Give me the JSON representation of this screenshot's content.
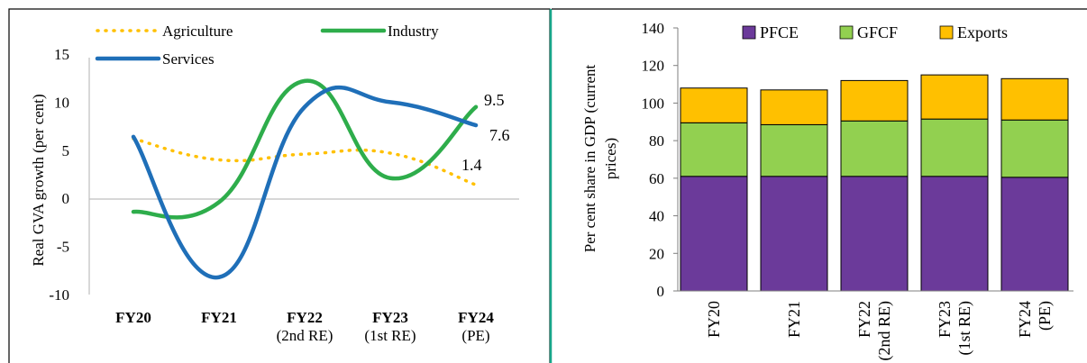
{
  "chart_data": [
    {
      "type": "line",
      "title": "",
      "ylabel": "Real GVA growth (per cent)",
      "xlabel": "",
      "categories": [
        "FY20",
        "FY21",
        "FY22|(2nd RE)",
        "FY23|(1st RE)",
        "FY24|(PE)"
      ],
      "ylim": [
        -10,
        15
      ],
      "yticks": [
        15,
        10,
        5,
        0,
        -5,
        -10
      ],
      "grid": false,
      "smooth": true,
      "legend_position": "top",
      "series": [
        {
          "name": "Agriculture",
          "values": [
            6.2,
            4.0,
            4.6,
            4.7,
            1.4
          ],
          "color": "#FFC000",
          "dash": "dotted",
          "end_label": "1.4"
        },
        {
          "name": "Industry",
          "values": [
            -1.4,
            -0.4,
            12.2,
            2.1,
            9.5
          ],
          "color": "#2EAD4B",
          "dash": "solid",
          "end_label": "9.5"
        },
        {
          "name": "Services",
          "values": [
            6.4,
            -8.2,
            9.5,
            10.0,
            7.6
          ],
          "color": "#1F6FB8",
          "dash": "solid",
          "end_label": "7.6"
        }
      ]
    },
    {
      "type": "bar",
      "stacked": true,
      "title": "",
      "ylabel": "Per cent share in GDP (current prices)",
      "ylabel_lines": [
        "Per cent share in GDP (current",
        "prices)"
      ],
      "xlabel": "",
      "categories": [
        "FY20",
        "FY21",
        "FY22|(2nd RE)",
        "FY23|(1st RE)",
        "FY24|(PE)"
      ],
      "ylim": [
        0,
        140
      ],
      "yticks": [
        0,
        20,
        40,
        60,
        80,
        100,
        120,
        140
      ],
      "grid": false,
      "legend_position": "top",
      "series": [
        {
          "name": "PFCE",
          "values": [
            61,
            61,
            61,
            61,
            60.5
          ],
          "color": "#6B3A9A"
        },
        {
          "name": "GFCF",
          "values": [
            28.5,
            27.5,
            29.5,
            30.5,
            30.5
          ],
          "color": "#92D050"
        },
        {
          "name": "Exports",
          "values": [
            18.5,
            18.5,
            21.5,
            23.5,
            22
          ],
          "color": "#FFC000"
        }
      ]
    }
  ]
}
